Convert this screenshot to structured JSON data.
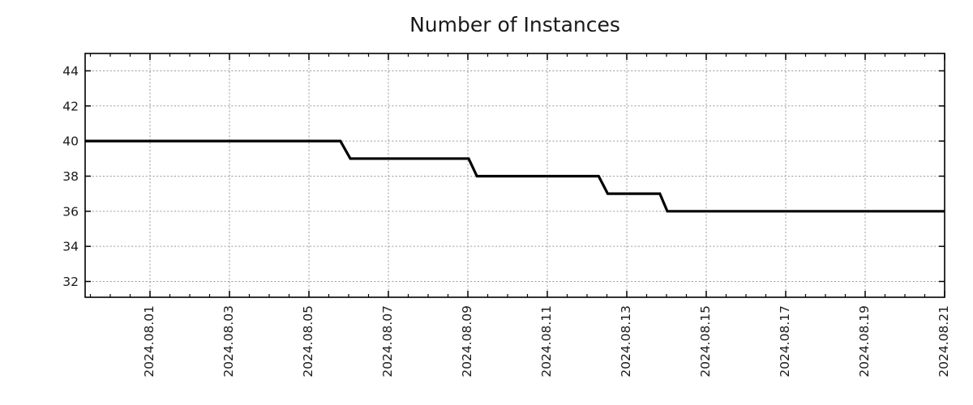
{
  "chart_data": {
    "type": "line",
    "title": "Number of Instances",
    "x_domain": [
      "2024-07-30 08:49",
      "2024-08-21 00:00"
    ],
    "y_domain": [
      31.1,
      44.99
    ],
    "y_ticks": [
      32,
      34,
      36,
      38,
      40,
      42,
      44
    ],
    "x_ticks": [
      {
        "t": "2024-08-01 00:00",
        "label": "2024.08.01"
      },
      {
        "t": "2024-08-03 00:00",
        "label": "2024.08.03"
      },
      {
        "t": "2024-08-05 00:00",
        "label": "2024.08.05"
      },
      {
        "t": "2024-08-07 00:00",
        "label": "2024.08.07"
      },
      {
        "t": "2024-08-09 00:00",
        "label": "2024.08.09"
      },
      {
        "t": "2024-08-11 00:00",
        "label": "2024.08.11"
      },
      {
        "t": "2024-08-13 00:00",
        "label": "2024.08.13"
      },
      {
        "t": "2024-08-15 00:00",
        "label": "2024.08.15"
      },
      {
        "t": "2024-08-17 00:00",
        "label": "2024.08.17"
      },
      {
        "t": "2024-08-19 00:00",
        "label": "2024.08.19"
      },
      {
        "t": "2024-08-21 00:00",
        "label": "2024.08.21"
      }
    ],
    "minor_tick_hours": 12,
    "grid": "dotted",
    "legend": "none",
    "series": [
      {
        "name": "instances",
        "points": [
          {
            "t": "2024-07-30 08:49",
            "v": 40
          },
          {
            "t": "2024-08-05 19:00",
            "v": 40
          },
          {
            "t": "2024-08-06 01:00",
            "v": 39
          },
          {
            "t": "2024-08-09 00:30",
            "v": 39
          },
          {
            "t": "2024-08-09 05:30",
            "v": 38
          },
          {
            "t": "2024-08-12 07:00",
            "v": 38
          },
          {
            "t": "2024-08-12 12:30",
            "v": 37
          },
          {
            "t": "2024-08-13 20:00",
            "v": 37
          },
          {
            "t": "2024-08-14 00:30",
            "v": 36
          },
          {
            "t": "2024-08-21 00:00",
            "v": 36
          }
        ]
      }
    ],
    "colors": {
      "line": "#000000",
      "grid": "#9a9a9a",
      "axis": "#000000",
      "text": "#1a1a1a",
      "background": "#ffffff"
    }
  }
}
